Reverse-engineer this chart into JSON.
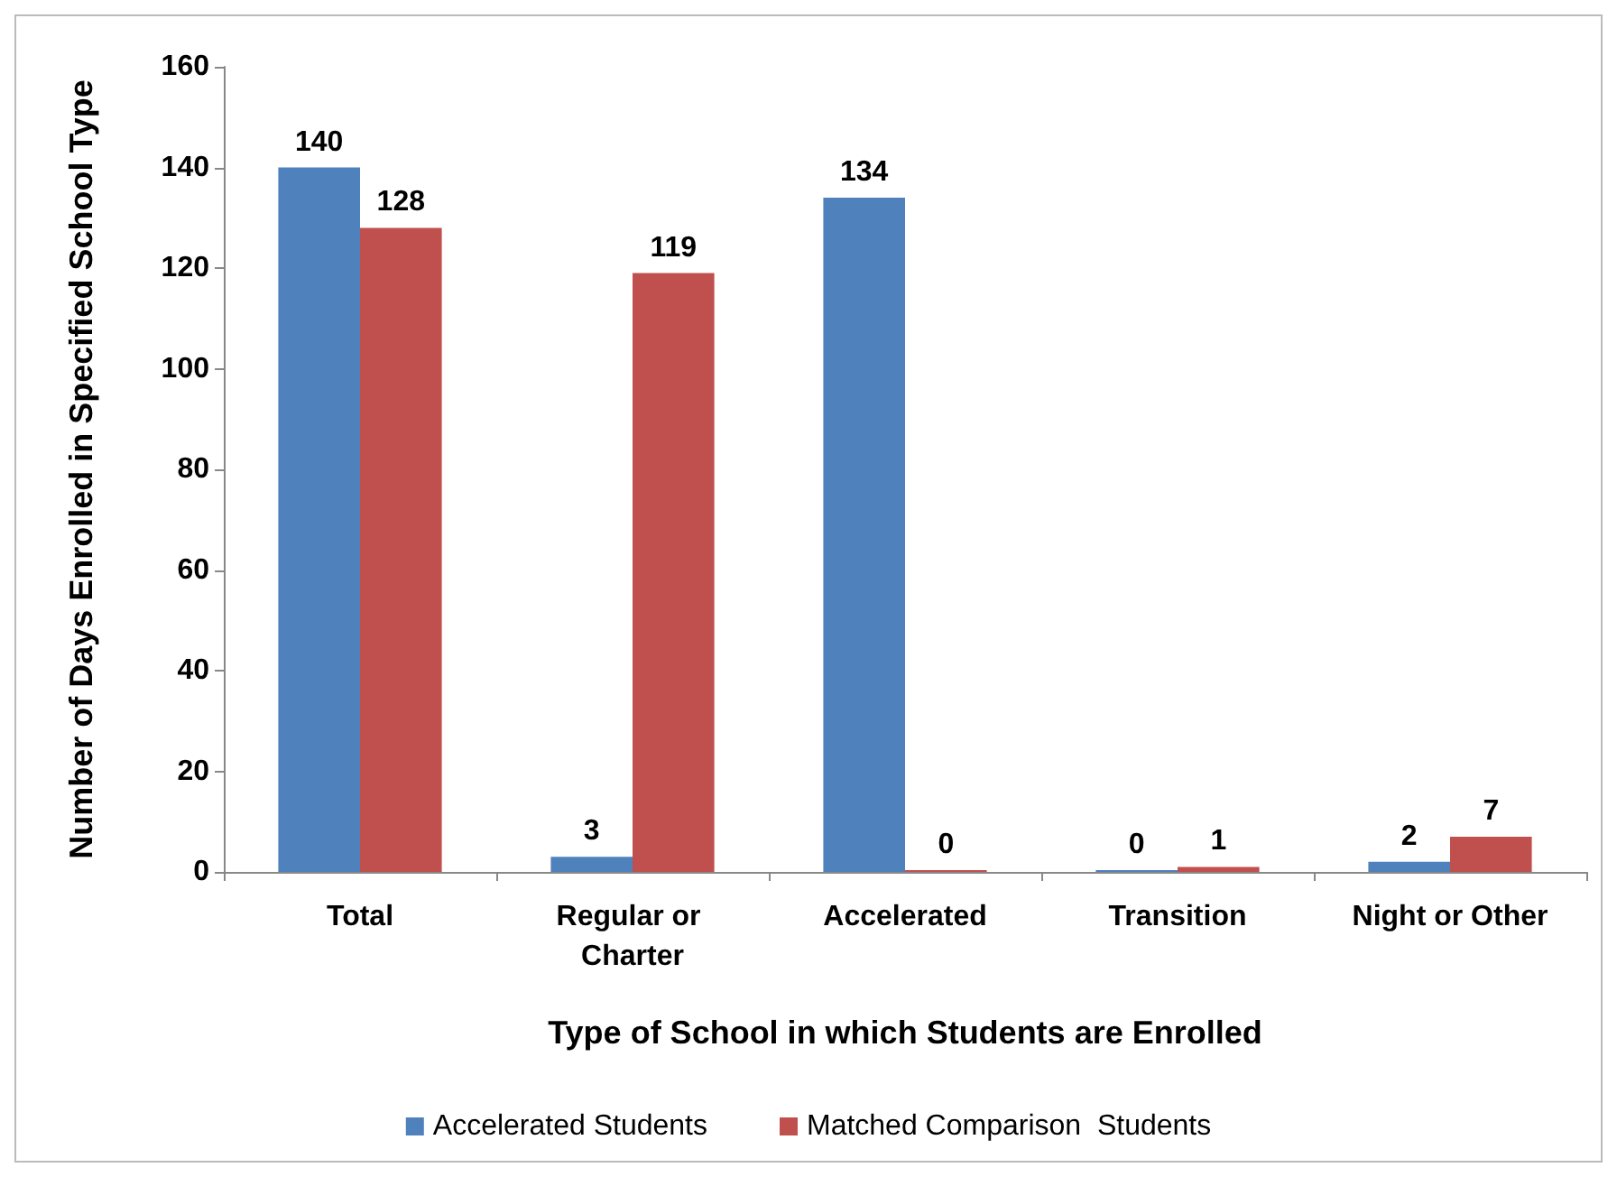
{
  "chart_data": {
    "type": "bar",
    "xlabel": "Type of School in which Students are Enrolled",
    "ylabel": "Number of Days Enrolled in Specified School Type",
    "categories": [
      "Total",
      "Regular or Charter",
      "Accelerated",
      "Transition",
      "Night or Other"
    ],
    "series": [
      {
        "name": "Accelerated Students",
        "color": "#4f81bd",
        "values": [
          140,
          3,
          134,
          0,
          2
        ]
      },
      {
        "name": "Matched Comparison  Students",
        "color": "#c0504d",
        "values": [
          128,
          119,
          0,
          1,
          7
        ]
      }
    ],
    "ylim": [
      0,
      160
    ],
    "yticks": [
      0,
      20,
      40,
      60,
      80,
      100,
      120,
      140,
      160
    ],
    "grid": false,
    "legend": "bottom",
    "data_labels": true
  }
}
